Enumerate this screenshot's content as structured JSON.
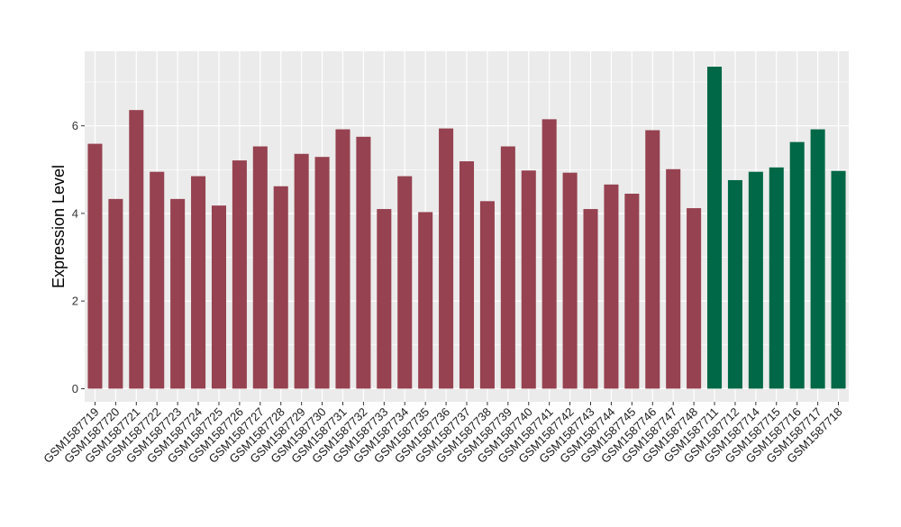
{
  "chart_data": {
    "type": "bar",
    "title": "",
    "xlabel": "",
    "ylabel": "Expression Level",
    "ylim": [
      -0.3,
      7.7
    ],
    "yticks": [
      0,
      2,
      4,
      6
    ],
    "grid": true,
    "legend": "none",
    "colors": {
      "group_a": "#964250",
      "group_b": "#006846",
      "panel_bg": "#ebebeb",
      "grid": "#ffffff"
    },
    "categories": [
      "GSM1587719",
      "GSM1587720",
      "GSM1587721",
      "GSM1587722",
      "GSM1587723",
      "GSM1587724",
      "GSM1587725",
      "GSM1587726",
      "GSM1587727",
      "GSM1587728",
      "GSM1587729",
      "GSM1587730",
      "GSM1587731",
      "GSM1587732",
      "GSM1587733",
      "GSM1587734",
      "GSM1587735",
      "GSM1587736",
      "GSM1587737",
      "GSM1587738",
      "GSM1587739",
      "GSM1587740",
      "GSM1587741",
      "GSM1587742",
      "GSM1587743",
      "GSM1587744",
      "GSM1587745",
      "GSM1587746",
      "GSM1587747",
      "GSM1587748",
      "GSM1587711",
      "GSM1587712",
      "GSM1587714",
      "GSM1587715",
      "GSM1587716",
      "GSM1587717",
      "GSM1587718"
    ],
    "values": [
      5.59,
      4.33,
      6.36,
      4.95,
      4.33,
      4.85,
      4.18,
      5.21,
      5.53,
      4.62,
      5.36,
      5.29,
      5.92,
      5.75,
      4.1,
      4.85,
      4.03,
      5.94,
      5.19,
      4.28,
      5.53,
      4.98,
      6.15,
      4.93,
      4.1,
      4.66,
      4.45,
      5.9,
      5.01,
      4.12,
      7.35,
      4.76,
      4.95,
      5.05,
      5.63,
      5.92,
      4.97
    ],
    "groups": [
      "a",
      "a",
      "a",
      "a",
      "a",
      "a",
      "a",
      "a",
      "a",
      "a",
      "a",
      "a",
      "a",
      "a",
      "a",
      "a",
      "a",
      "a",
      "a",
      "a",
      "a",
      "a",
      "a",
      "a",
      "a",
      "a",
      "a",
      "a",
      "a",
      "a",
      "b",
      "b",
      "b",
      "b",
      "b",
      "b",
      "b"
    ]
  }
}
